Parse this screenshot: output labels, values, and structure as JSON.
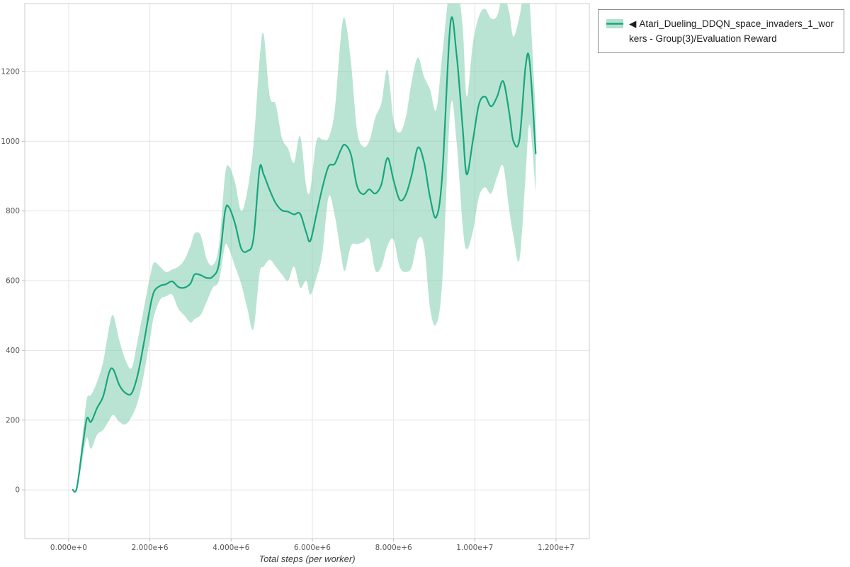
{
  "x_axis_title": "Total steps (per worker)",
  "chart_data": {
    "type": "line",
    "title": "",
    "xlabel": "Total steps (per worker)",
    "ylabel": "",
    "xlim": [
      -1080000,
      12820000
    ],
    "ylim": [
      -140,
      1395
    ],
    "grid": true,
    "legend_position": "top-right",
    "x_ticks": {
      "values": [
        0,
        2000000,
        4000000,
        6000000,
        8000000,
        10000000,
        12000000
      ],
      "labels": [
        "0.000e+0",
        "2.000e+6",
        "4.000e+6",
        "6.000e+6",
        "8.000e+6",
        "1.000e+7",
        "1.200e+7"
      ]
    },
    "y_ticks": {
      "values": [
        0,
        200,
        400,
        600,
        800,
        1000,
        1200
      ],
      "labels": [
        "0",
        "200",
        "400",
        "600",
        "800",
        "1000",
        "1200"
      ]
    },
    "legend": {
      "marker": "◀",
      "label": "Atari_Dueling_DDQN_space_invaders_1_workers - Group(3)/Evaluation Reward"
    },
    "colors": {
      "line": "#18a57e",
      "band": "#74c9a8",
      "band_opacity": 0.5,
      "grid": "#e4e4e4",
      "frame": "#cccccc",
      "tick_text": "#555555"
    },
    "series": [
      {
        "name": "Atari_Dueling_DDQN_space_invaders_1_workers - Group(3)/Evaluation Reward",
        "x": [
          100000,
          200000,
          350000,
          450000,
          550000,
          700000,
          850000,
          1000000,
          1100000,
          1250000,
          1400000,
          1550000,
          1700000,
          1850000,
          2000000,
          2100000,
          2250000,
          2400000,
          2550000,
          2700000,
          2850000,
          3000000,
          3100000,
          3250000,
          3400000,
          3550000,
          3700000,
          3850000,
          3950000,
          4100000,
          4250000,
          4400000,
          4550000,
          4700000,
          4800000,
          4950000,
          5100000,
          5250000,
          5400000,
          5550000,
          5700000,
          5850000,
          5950000,
          6100000,
          6250000,
          6400000,
          6550000,
          6700000,
          6800000,
          6950000,
          7100000,
          7250000,
          7400000,
          7550000,
          7700000,
          7850000,
          8000000,
          8150000,
          8300000,
          8450000,
          8600000,
          8750000,
          8900000,
          9050000,
          9200000,
          9400000,
          9550000,
          9700000,
          9800000,
          9950000,
          10100000,
          10250000,
          10400000,
          10550000,
          10700000,
          10850000,
          10950000,
          11100000,
          11250000,
          11350000,
          11500000
        ],
        "mean": [
          0,
          5,
          130,
          205,
          195,
          235,
          268,
          338,
          345,
          300,
          278,
          277,
          330,
          420,
          520,
          568,
          585,
          590,
          598,
          582,
          580,
          592,
          618,
          616,
          608,
          612,
          648,
          798,
          810,
          762,
          692,
          685,
          720,
          920,
          905,
          860,
          822,
          802,
          798,
          790,
          792,
          738,
          714,
          790,
          868,
          928,
          935,
          975,
          990,
          962,
          872,
          848,
          862,
          850,
          876,
          952,
          888,
          832,
          846,
          905,
          982,
          940,
          838,
          782,
          905,
          1338,
          1250,
          1040,
          905,
          1000,
          1105,
          1128,
          1100,
          1128,
          1172,
          1080,
          1000,
          1005,
          1215,
          1228,
          965
        ],
        "band_lower": [
          0,
          0,
          95,
          150,
          118,
          158,
          172,
          200,
          215,
          195,
          188,
          210,
          252,
          330,
          432,
          498,
          545,
          555,
          560,
          520,
          500,
          480,
          490,
          502,
          540,
          580,
          600,
          700,
          690,
          640,
          590,
          520,
          462,
          620,
          640,
          660,
          640,
          618,
          600,
          640,
          580,
          600,
          560,
          608,
          680,
          840,
          788,
          680,
          628,
          700,
          705,
          710,
          718,
          630,
          640,
          700,
          718,
          640,
          625,
          640,
          718,
          700,
          520,
          475,
          600,
          1095,
          1000,
          758,
          690,
          740,
          840,
          868,
          850,
          898,
          928,
          800,
          730,
          660,
          900,
          1048,
          852
        ],
        "band_upper": [
          0,
          12,
          165,
          262,
          272,
          310,
          368,
          468,
          500,
          428,
          372,
          350,
          430,
          520,
          610,
          652,
          640,
          625,
          632,
          640,
          660,
          700,
          735,
          730,
          662,
          645,
          700,
          902,
          928,
          880,
          800,
          858,
          988,
          1232,
          1308,
          1130,
          1105,
          1010,
          980,
          938,
          1015,
          870,
          862,
          1000,
          1005,
          1010,
          1088,
          1298,
          1352,
          1228,
          1032,
          985,
          1000,
          1068,
          1110,
          1205,
          1060,
          1025,
          1068,
          1175,
          1240,
          1185,
          1148,
          1090,
          1248,
          1460,
          1460,
          1330,
          1128,
          1278,
          1358,
          1380,
          1352,
          1360,
          1420,
          1368,
          1300,
          1358,
          1452,
          1400,
          1078
        ]
      }
    ]
  }
}
